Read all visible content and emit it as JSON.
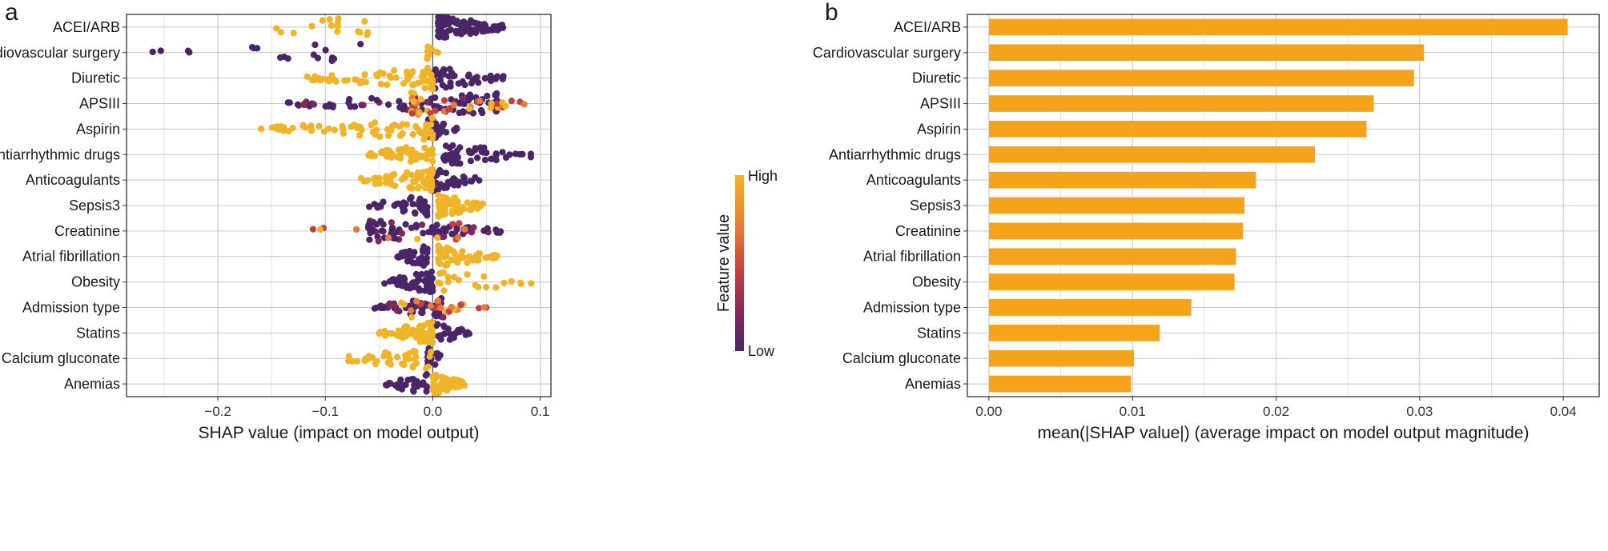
{
  "chart_data": [
    {
      "panel": "a",
      "type": "scatter",
      "subtype": "shap-beeswarm",
      "xlabel": "SHAP value (impact on model output)",
      "ylabel": "",
      "xlim": [
        -0.285,
        0.11
      ],
      "xticks": [
        -0.2,
        -0.1,
        0.0,
        0.1
      ],
      "xtick_labels": [
        "−0.2",
        "−0.1",
        "0.0",
        "0.1"
      ],
      "grid": true,
      "legend": {
        "title": "Feature value",
        "high_label": "High",
        "low_label": "Low",
        "placement": "right",
        "colors": [
          "#f0b429",
          "#e87a3a",
          "#c2413f",
          "#7f2a5c",
          "#4a2567"
        ]
      },
      "features": [
        {
          "name": "ACEI/ARB",
          "high_range": [
            -0.19,
            -0.06
          ],
          "high_n": 16,
          "low_range": [
            0.005,
            0.07
          ],
          "low_n": 90
        },
        {
          "name": "Cardiovascular surgery",
          "high_range": [
            -0.005,
            0.005
          ],
          "high_n": 14,
          "low_range": [
            -0.27,
            -0.06
          ],
          "low_n": 18
        },
        {
          "name": "Diuretic",
          "high_range": [
            -0.12,
            0.0
          ],
          "high_n": 60,
          "low_range": [
            0.0,
            0.07
          ],
          "low_n": 45
        },
        {
          "name": "APSIII",
          "high_range": [
            -0.02,
            0.09
          ],
          "high_n": 40,
          "low_range": [
            -0.135,
            0.06
          ],
          "low_n": 90
        },
        {
          "name": "Aspirin",
          "high_range": [
            -0.16,
            0.0
          ],
          "high_n": 70,
          "low_range": [
            -0.005,
            0.025
          ],
          "low_n": 30
        },
        {
          "name": "Antiarrhythmic drugs",
          "high_range": [
            -0.06,
            0.0
          ],
          "high_n": 50,
          "low_range": [
            0.01,
            0.1
          ],
          "low_n": 50
        },
        {
          "name": "Anticoagulants",
          "high_range": [
            -0.07,
            0.0
          ],
          "high_n": 70,
          "low_range": [
            0.0,
            0.045
          ],
          "low_n": 35
        },
        {
          "name": "Sepsis3",
          "high_range": [
            0.005,
            0.05
          ],
          "high_n": 60,
          "low_range": [
            -0.06,
            -0.005
          ],
          "low_n": 35
        },
        {
          "name": "Creatinine",
          "high_range": [
            -0.13,
            0.03
          ],
          "high_n": 12,
          "low_range": [
            -0.06,
            0.065
          ],
          "low_n": 80
        },
        {
          "name": "Atrial fibrillation",
          "high_range": [
            0.005,
            0.06
          ],
          "high_n": 55,
          "low_range": [
            -0.035,
            -0.005
          ],
          "low_n": 40
        },
        {
          "name": "Obesity",
          "high_range": [
            0.005,
            0.095
          ],
          "high_n": 20,
          "low_range": [
            -0.045,
            0.0
          ],
          "low_n": 60
        },
        {
          "name": "Admission type",
          "high_range": [
            -0.03,
            0.05
          ],
          "high_n": 25,
          "low_range": [
            -0.055,
            0.01
          ],
          "low_n": 50
        },
        {
          "name": "Statins",
          "high_range": [
            -0.05,
            0.0
          ],
          "high_n": 70,
          "low_range": [
            0.0,
            0.035
          ],
          "low_n": 25
        },
        {
          "name": "Calcium gluconate",
          "high_range": [
            -0.09,
            0.0
          ],
          "high_n": 40,
          "low_range": [
            -0.005,
            0.01
          ],
          "low_n": 15
        },
        {
          "name": "Anemias",
          "high_range": [
            0.0,
            0.03
          ],
          "high_n": 50,
          "low_range": [
            -0.045,
            -0.005
          ],
          "low_n": 30
        }
      ]
    },
    {
      "panel": "b",
      "type": "bar",
      "orientation": "horizontal",
      "categories": [
        "ACEI/ARB",
        "Cardiovascular surgery",
        "Diuretic",
        "APSIII",
        "Aspirin",
        "Antiarrhythmic drugs",
        "Anticoagulants",
        "Sepsis3",
        "Creatinine",
        "Atrial fibrillation",
        "Obesity",
        "Admission type",
        "Statins",
        "Calcium gluconate",
        "Anemias"
      ],
      "values": [
        0.0403,
        0.0303,
        0.0296,
        0.0268,
        0.0263,
        0.0227,
        0.0186,
        0.0178,
        0.0177,
        0.0172,
        0.0171,
        0.0141,
        0.0119,
        0.0101,
        0.0099
      ],
      "xlabel": "mean(|SHAP value|) (average impact on model output magnitude)",
      "ylabel": "",
      "xlim": [
        -0.0015,
        0.0425
      ],
      "xticks": [
        0.0,
        0.01,
        0.02,
        0.03,
        0.04
      ],
      "xtick_labels": [
        "0.00",
        "0.01",
        "0.02",
        "0.03",
        "0.04"
      ],
      "bar_color": "#f5a31a",
      "grid": true
    }
  ]
}
